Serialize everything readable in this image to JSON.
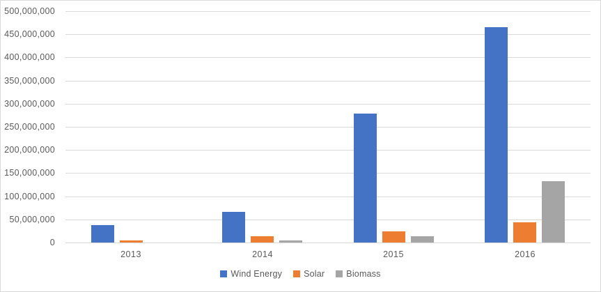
{
  "chart_data": {
    "type": "bar",
    "title": "",
    "xlabel": "",
    "ylabel": "",
    "categories": [
      "2013",
      "2014",
      "2015",
      "2016"
    ],
    "series": [
      {
        "name": "Wind Energy",
        "color": "#4472C4",
        "values": [
          37000000,
          67000000,
          278000000,
          465000000
        ]
      },
      {
        "name": "Solar",
        "color": "#ED7D31",
        "values": [
          4000000,
          14000000,
          24000000,
          43000000
        ]
      },
      {
        "name": "Biomass",
        "color": "#A5A5A5",
        "values": [
          0,
          4000000,
          14000000,
          132000000
        ]
      }
    ],
    "ylim": [
      0,
      500000000
    ],
    "ytick_interval": 50000000,
    "ytick_labels": [
      "0",
      "50,000,000",
      "100,000,000",
      "150,000,000",
      "200,000,000",
      "250,000,000",
      "300,000,000",
      "350,000,000",
      "400,000,000",
      "450,000,000",
      "500,000,000"
    ],
    "grid": true,
    "legend_position": "bottom",
    "colors": {
      "background": "#FFFFFF",
      "gridline": "#D9D9D9",
      "axis_text": "#595959",
      "border": "#D9D9D9"
    }
  }
}
